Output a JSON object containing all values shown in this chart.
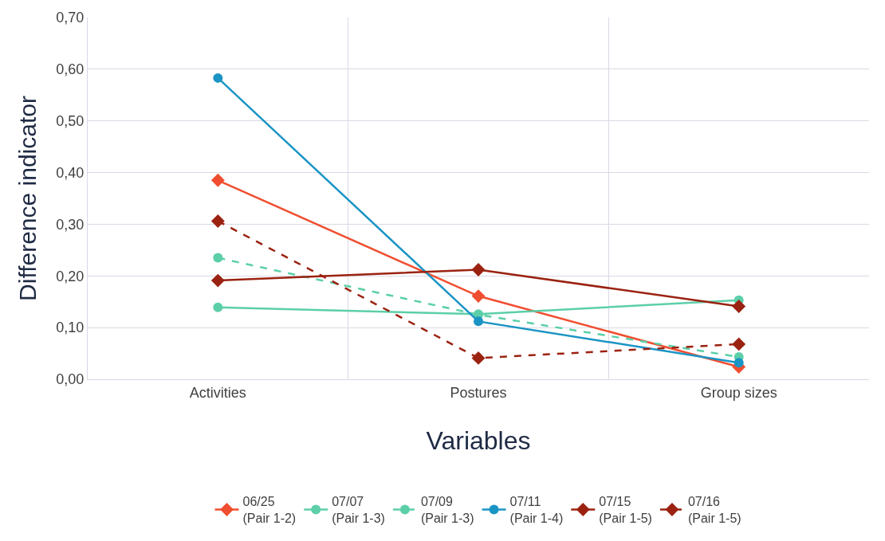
{
  "chart_data": {
    "type": "line",
    "xlabel": "Variables",
    "ylabel": "Difference indicator",
    "categories": [
      "Activities",
      "Postures",
      "Group sizes"
    ],
    "series": [
      {
        "name": "06/25\n(Pair 1-2)",
        "color": "#f04e30",
        "marker": "diamond",
        "line_style": "solid",
        "values": [
          0.385,
          0.161,
          0.024
        ]
      },
      {
        "name": "07/07\n(Pair 1-3)",
        "color": "#5ccfa8",
        "marker": "circle",
        "line_style": "solid",
        "values": [
          0.139,
          0.126,
          0.153
        ]
      },
      {
        "name": "07/09\n(Pair 1-3)",
        "color": "#5ccfa8",
        "marker": "circle",
        "line_style": "dashed",
        "values": [
          0.235,
          0.125,
          0.043
        ]
      },
      {
        "name": "07/11\n(Pair 1-4)",
        "color": "#1a94c4",
        "marker": "circle",
        "line_style": "solid",
        "values": [
          0.583,
          0.112,
          0.032
        ]
      },
      {
        "name": "07/15\n(Pair 1-5)",
        "color": "#9b2211",
        "marker": "diamond",
        "line_style": "solid",
        "values": [
          0.191,
          0.212,
          0.141
        ]
      },
      {
        "name": "07/16\n(Pair 1-5)",
        "color": "#9b2211",
        "marker": "diamond",
        "line_style": "dashed",
        "values": [
          0.306,
          0.041,
          0.068
        ]
      }
    ],
    "ylim": [
      0,
      0.7
    ],
    "yticks": [
      {
        "value": 0,
        "label": "0,00"
      },
      {
        "value": 0.1,
        "label": "0,10"
      },
      {
        "value": 0.2,
        "label": "0,20"
      },
      {
        "value": 0.3,
        "label": "0,30"
      },
      {
        "value": 0.4,
        "label": "0,40"
      },
      {
        "value": 0.5,
        "label": "0,50"
      },
      {
        "value": 0.6,
        "label": "0,60"
      },
      {
        "value": 0.7,
        "label": "0,70"
      }
    ],
    "grid": true,
    "legend": "bottom"
  }
}
